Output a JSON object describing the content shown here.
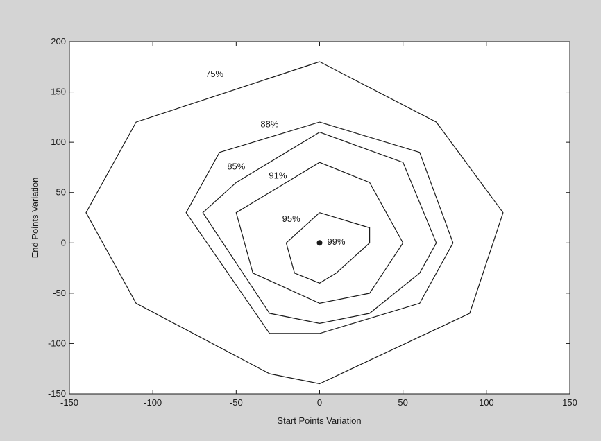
{
  "chart_data": {
    "type": "line",
    "title": "",
    "xlabel": "Start Points Variation",
    "ylabel": "End Points Variation",
    "xlim": [
      -150,
      150
    ],
    "ylim": [
      -150,
      200
    ],
    "xticks": [
      -150,
      -100,
      -50,
      0,
      50,
      100,
      150
    ],
    "yticks": [
      -150,
      -100,
      -50,
      0,
      50,
      100,
      150,
      200
    ],
    "xtick_labels": [
      "-150",
      "-100",
      "-50",
      "0",
      "50",
      "100",
      "150"
    ],
    "ytick_labels": [
      "-150",
      "-100",
      "-50",
      "0",
      "50",
      "100",
      "150",
      "200"
    ],
    "grid": false,
    "legend": "none",
    "line_color": "#1a1a1a",
    "series": [
      {
        "name": "75%",
        "x": [
          0,
          70,
          110,
          90,
          0,
          -30,
          -110,
          -140,
          -110,
          0
        ],
        "y": [
          180,
          120,
          30,
          -70,
          -140,
          -130,
          -60,
          30,
          120,
          180
        ]
      },
      {
        "name": "88%",
        "x": [
          0,
          60,
          80,
          60,
          0,
          -30,
          -80,
          -60,
          0
        ],
        "y": [
          120,
          90,
          0,
          -60,
          -90,
          -90,
          30,
          90,
          120
        ]
      },
      {
        "name": "85%",
        "x": [
          0,
          50,
          70,
          60,
          30,
          0,
          -30,
          -70,
          -50,
          0
        ],
        "y": [
          110,
          80,
          0,
          -30,
          -70,
          -80,
          -70,
          30,
          60,
          110
        ]
      },
      {
        "name": "91%",
        "x": [
          0,
          30,
          50,
          30,
          0,
          -40,
          -50,
          0
        ],
        "y": [
          80,
          60,
          0,
          -50,
          -60,
          -30,
          30,
          80
        ]
      },
      {
        "name": "95%",
        "x": [
          0,
          30,
          30,
          10,
          0,
          -15,
          -20,
          0
        ],
        "y": [
          30,
          15,
          0,
          -30,
          -40,
          -30,
          0,
          30
        ]
      }
    ],
    "center_point": {
      "x": 0,
      "y": 0,
      "label": "99%"
    },
    "contour_labels": [
      {
        "text": "75%",
        "x": -63,
        "y": 165
      },
      {
        "text": "88%",
        "x": -30,
        "y": 115
      },
      {
        "text": "85%",
        "x": -50,
        "y": 73
      },
      {
        "text": "91%",
        "x": -25,
        "y": 64
      },
      {
        "text": "95%",
        "x": -17,
        "y": 21
      },
      {
        "text": "99%",
        "x": 10,
        "y": -2
      }
    ]
  }
}
